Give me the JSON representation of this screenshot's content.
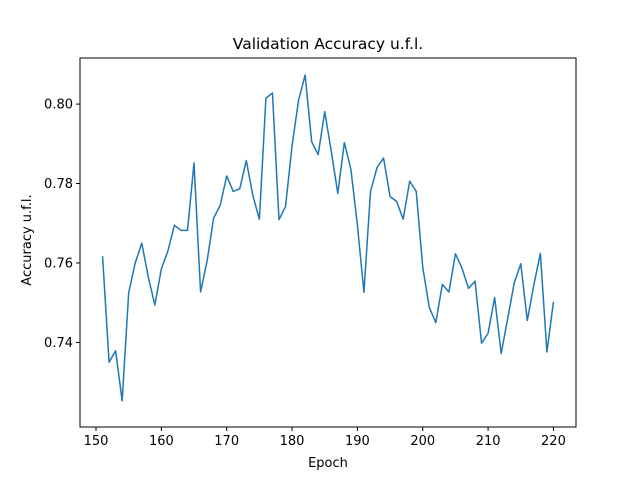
{
  "chart_data": {
    "type": "line",
    "title": "Validation Accuracy u.f.l.",
    "xlabel": "Epoch",
    "ylabel": "Accuracy u.f.l.",
    "xlim": [
      147.55,
      223.45
    ],
    "ylim": [
      0.7187,
      0.8116
    ],
    "xticks": [
      150,
      160,
      170,
      180,
      190,
      200,
      210,
      220
    ],
    "xtick_labels": [
      "150",
      "160",
      "170",
      "180",
      "190",
      "200",
      "210",
      "220"
    ],
    "yticks": [
      0.74,
      0.76,
      0.78,
      0.8
    ],
    "ytick_labels": [
      "0.74",
      "0.76",
      "0.78",
      "0.80"
    ],
    "grid": false,
    "legend": "none",
    "line_color": "#1f77b4",
    "series": [
      {
        "x": [
          151,
          152,
          153,
          154,
          155,
          156,
          157,
          158,
          159,
          160,
          161,
          162,
          163,
          164,
          165,
          166,
          167,
          168,
          169,
          170,
          171,
          172,
          173,
          174,
          175,
          176,
          177,
          178,
          179,
          180,
          181,
          182,
          183,
          184,
          185,
          186,
          187,
          188,
          189,
          190,
          191,
          192,
          193,
          194,
          195,
          196,
          197,
          198,
          199,
          200,
          201,
          202,
          203,
          204,
          205,
          206,
          207,
          208,
          209,
          210,
          211,
          212,
          213,
          214,
          215,
          216,
          217,
          218,
          219,
          220
        ],
        "values": [
          0.7617,
          0.735,
          0.7379,
          0.7253,
          0.7525,
          0.76,
          0.765,
          0.7565,
          0.7494,
          0.7585,
          0.763,
          0.7695,
          0.7682,
          0.7682,
          0.7852,
          0.7527,
          0.7605,
          0.7713,
          0.7745,
          0.7819,
          0.778,
          0.7787,
          0.7858,
          0.777,
          0.771,
          0.8015,
          0.8028,
          0.7709,
          0.7742,
          0.7895,
          0.801,
          0.8073,
          0.7905,
          0.7873,
          0.7981,
          0.7881,
          0.7775,
          0.7903,
          0.7836,
          0.7695,
          0.7526,
          0.7779,
          0.784,
          0.7864,
          0.7767,
          0.7755,
          0.771,
          0.7806,
          0.778,
          0.7589,
          0.7488,
          0.745,
          0.7546,
          0.7527,
          0.7623,
          0.7587,
          0.7536,
          0.7554,
          0.7398,
          0.7423,
          0.7513,
          0.7372,
          0.746,
          0.755,
          0.7598,
          0.7455,
          0.7545,
          0.7624,
          0.7376,
          0.7502
        ]
      }
    ]
  }
}
